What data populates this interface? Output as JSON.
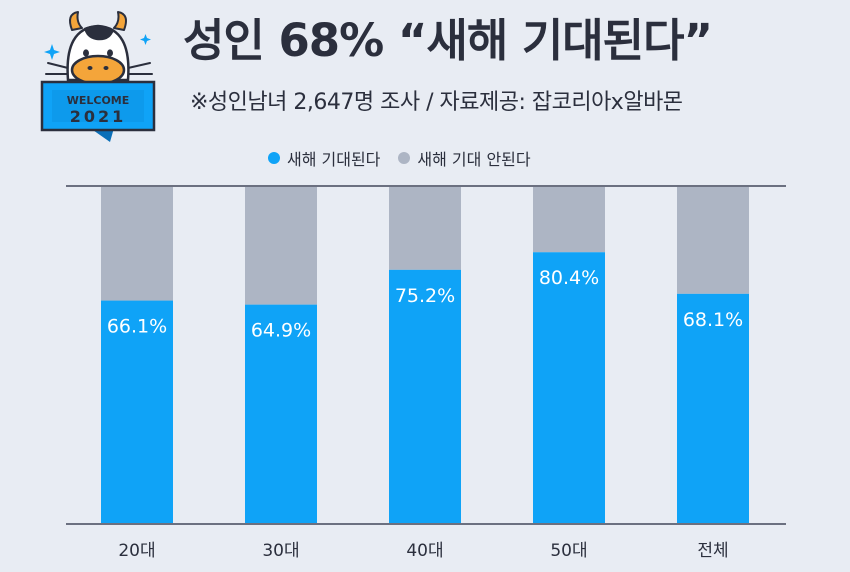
{
  "header": {
    "title": "성인 68% “새해 기대된다”",
    "subtitle": "※성인남녀 2,647명 조사 / 자료제공: 잡코리아x알바몬",
    "badge_line1": "WELCOME",
    "badge_line2": "2021"
  },
  "chart_data": {
    "type": "bar",
    "stacked": true,
    "categories": [
      "20대",
      "30대",
      "40대",
      "50대",
      "전체"
    ],
    "series": [
      {
        "name": "새해 기대된다",
        "color": "#0fa3f7",
        "values": [
          66.1,
          64.9,
          75.2,
          80.4,
          68.1
        ],
        "labels": [
          "66.1%",
          "64.9%",
          "75.2%",
          "80.4%",
          "68.1%"
        ]
      },
      {
        "name": "새해 기대 안된다",
        "color": "#adb5c4",
        "values": [
          33.9,
          35.1,
          24.8,
          19.6,
          31.9
        ]
      }
    ],
    "ylim": [
      0,
      100
    ],
    "legend_position": "top-center",
    "grid": false
  }
}
